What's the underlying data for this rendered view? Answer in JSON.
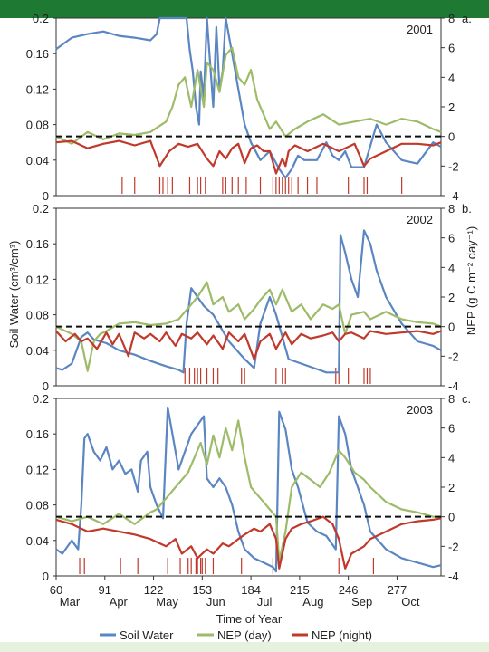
{
  "colors": {
    "soil_water": "#5b86c2",
    "nep_day": "#9dbb68",
    "nep_night": "#c0392b",
    "zero_line": "#111111",
    "header_bar": "#1e7a32",
    "footer_bar": "#e6f2de"
  },
  "chart_data": [
    {
      "type": "line",
      "panel_label": "a.",
      "year": "2001",
      "x_range": [
        60,
        305
      ],
      "ylim_left": [
        0,
        0.2
      ],
      "ylim_right": [
        -4,
        8
      ],
      "left_ticks": [
        "0",
        "0.04",
        "0.08",
        "0.12",
        "0.16",
        "0.2"
      ],
      "right_ticks": [
        "-4",
        "-2",
        "0",
        "2",
        "4",
        "6",
        "8"
      ],
      "series": [
        {
          "name": "Soil Water",
          "axis": "left",
          "x": [
            60,
            70,
            80,
            90,
            100,
            110,
            120,
            124,
            126,
            132,
            139,
            143,
            145,
            147,
            149,
            151,
            152,
            154,
            156,
            158,
            160,
            162,
            164,
            166,
            168,
            172,
            176,
            180,
            184,
            190,
            196,
            202,
            206,
            210,
            214,
            218,
            226,
            232,
            236,
            240,
            244,
            248,
            256,
            264,
            270,
            280,
            290,
            300,
            305
          ],
          "values": [
            0.165,
            0.178,
            0.182,
            0.185,
            0.18,
            0.178,
            0.175,
            0.182,
            0.2,
            0.2,
            0.2,
            0.2,
            0.165,
            0.14,
            0.1,
            0.08,
            0.14,
            0.11,
            0.2,
            0.15,
            0.1,
            0.19,
            0.12,
            0.14,
            0.2,
            0.16,
            0.12,
            0.08,
            0.06,
            0.04,
            0.05,
            0.03,
            0.02,
            0.03,
            0.045,
            0.04,
            0.04,
            0.06,
            0.045,
            0.04,
            0.05,
            0.032,
            0.032,
            0.08,
            0.06,
            0.04,
            0.036,
            0.06,
            0.055
          ]
        },
        {
          "name": "NEP (day)",
          "axis": "right",
          "x": [
            60,
            70,
            80,
            90,
            100,
            110,
            120,
            130,
            134,
            138,
            142,
            146,
            150,
            154,
            156,
            160,
            164,
            168,
            172,
            176,
            180,
            184,
            188,
            192,
            196,
            200,
            206,
            212,
            220,
            230,
            240,
            250,
            260,
            270,
            280,
            290,
            300,
            305
          ],
          "values": [
            0,
            -0.5,
            0.3,
            -0.2,
            0.2,
            0.1,
            0.3,
            1,
            2,
            3.5,
            4,
            2,
            4.5,
            2,
            5,
            4.5,
            3,
            5.5,
            6,
            4,
            3.5,
            4.5,
            2.5,
            1.5,
            0.5,
            1,
            0,
            0.5,
            1,
            1.5,
            0.8,
            1,
            1.2,
            0.8,
            1.2,
            1,
            0.5,
            0.3
          ]
        },
        {
          "name": "NEP (night)",
          "axis": "right",
          "x": [
            60,
            70,
            80,
            90,
            100,
            110,
            120,
            126,
            132,
            138,
            144,
            150,
            156,
            160,
            164,
            168,
            172,
            176,
            180,
            184,
            188,
            192,
            196,
            200,
            204,
            206,
            208,
            212,
            220,
            230,
            240,
            250,
            256,
            260,
            270,
            280,
            290,
            300,
            305
          ],
          "values": [
            -0.4,
            -0.3,
            -0.8,
            -0.5,
            -0.3,
            -0.6,
            -0.3,
            -2,
            -1,
            -0.5,
            -0.7,
            -0.5,
            -1.5,
            -2,
            -1,
            -1.5,
            -0.8,
            -0.5,
            -1.8,
            -0.8,
            -0.6,
            -1,
            -1,
            -2.5,
            -1.5,
            -2,
            -1,
            -0.6,
            -1,
            -0.5,
            -1,
            -0.5,
            -2,
            -1.5,
            -1,
            -0.5,
            -0.5,
            -0.6,
            -0.4
          ]
        }
      ],
      "precip_days": [
        102,
        110,
        126,
        128,
        131,
        134,
        145,
        150,
        152,
        155,
        166,
        168,
        172,
        176,
        181,
        190,
        198,
        200,
        202,
        204,
        206,
        208,
        210,
        214,
        220,
        226,
        246,
        256,
        258,
        280
      ]
    },
    {
      "type": "line",
      "panel_label": "b.",
      "year": "2002",
      "x_range": [
        60,
        305
      ],
      "ylim_left": [
        0,
        0.2
      ],
      "ylim_right": [
        -4,
        8
      ],
      "left_ticks": [
        "0",
        "0.04",
        "0.08",
        "0.12",
        "0.16",
        "0.2"
      ],
      "right_ticks": [
        "-4",
        "-2",
        "0",
        "2",
        "4",
        "6",
        "8"
      ],
      "series": [
        {
          "name": "Soil Water",
          "axis": "left",
          "x": [
            60,
            64,
            70,
            76,
            80,
            84,
            88,
            92,
            100,
            110,
            120,
            130,
            138,
            141,
            143,
            146,
            150,
            154,
            160,
            170,
            180,
            186,
            190,
            196,
            200,
            208,
            216,
            224,
            232,
            240,
            241,
            244,
            248,
            252,
            256,
            260,
            264,
            270,
            280,
            290,
            300,
            305
          ],
          "values": [
            0.02,
            0.018,
            0.025,
            0.055,
            0.06,
            0.052,
            0.05,
            0.048,
            0.04,
            0.035,
            0.028,
            0.022,
            0.018,
            0.015,
            0.07,
            0.11,
            0.1,
            0.09,
            0.08,
            0.05,
            0.03,
            0.02,
            0.07,
            0.1,
            0.08,
            0.03,
            0.025,
            0.02,
            0.015,
            0.015,
            0.17,
            0.15,
            0.12,
            0.1,
            0.175,
            0.16,
            0.13,
            0.1,
            0.07,
            0.05,
            0.045,
            0.04
          ]
        },
        {
          "name": "NEP (day)",
          "axis": "right",
          "x": [
            60,
            70,
            76,
            80,
            84,
            88,
            92,
            100,
            110,
            120,
            130,
            138,
            142,
            146,
            150,
            156,
            160,
            166,
            170,
            176,
            180,
            186,
            190,
            196,
            200,
            204,
            210,
            216,
            222,
            230,
            236,
            240,
            244,
            248,
            256,
            260,
            270,
            280,
            290,
            300,
            305
          ],
          "values": [
            0,
            -0.5,
            -1,
            -3,
            -1,
            -0.5,
            -0.3,
            0.2,
            0.3,
            0.1,
            0.2,
            0.5,
            1,
            1.5,
            2,
            3,
            1.5,
            2,
            1,
            1.5,
            0.5,
            1.2,
            1.8,
            2.5,
            1.5,
            2.5,
            1,
            1.5,
            0.5,
            1.5,
            1.2,
            1.5,
            -0.5,
            0.8,
            1,
            0.5,
            1,
            0.5,
            0.3,
            0.2,
            0
          ]
        },
        {
          "name": "NEP (night)",
          "axis": "right",
          "x": [
            60,
            66,
            72,
            76,
            80,
            86,
            92,
            96,
            100,
            106,
            110,
            116,
            120,
            126,
            130,
            136,
            140,
            146,
            150,
            156,
            160,
            166,
            170,
            176,
            180,
            186,
            190,
            196,
            200,
            206,
            210,
            216,
            222,
            230,
            236,
            240,
            244,
            248,
            256,
            260,
            270,
            280,
            290,
            300,
            305
          ],
          "values": [
            -0.3,
            -1,
            -0.5,
            -1,
            -0.8,
            -1.5,
            -0.4,
            -1.2,
            -0.5,
            -2,
            -0.4,
            -0.8,
            -0.5,
            -1,
            -0.4,
            -1.3,
            -0.5,
            -0.8,
            -0.4,
            -1.2,
            -0.6,
            -1.5,
            -0.4,
            -1,
            -0.5,
            -2.2,
            -1,
            -0.5,
            -1.5,
            -0.4,
            -1.2,
            -0.5,
            -0.8,
            -0.6,
            -0.4,
            -1,
            -0.5,
            -0.4,
            -0.8,
            -0.3,
            -0.5,
            -0.4,
            -0.3,
            -0.5,
            -0.3
          ]
        },
        {
          "name": "Zero",
          "axis": "right",
          "x": [],
          "values": []
        }
      ],
      "precip_days": [
        142,
        145,
        148,
        150,
        152,
        156,
        160,
        163,
        178,
        180,
        200,
        204,
        206,
        238,
        240,
        246,
        256,
        258,
        260
      ]
    },
    {
      "type": "line",
      "panel_label": "c.",
      "year": "2003",
      "x_range": [
        60,
        305
      ],
      "ylim_left": [
        0,
        0.2
      ],
      "ylim_right": [
        -4,
        8
      ],
      "left_ticks": [
        "0",
        "0.04",
        "0.08",
        "0.12",
        "0.16",
        "0.2"
      ],
      "right_ticks": [
        "-4",
        "-2",
        "0",
        "2",
        "4",
        "6",
        "8"
      ],
      "x_ticks": [
        "60",
        "91",
        "122",
        "153",
        "184",
        "215",
        "246",
        "277"
      ],
      "month_labels": [
        "Mar",
        "Apr",
        "May",
        "Jun",
        "Jul",
        "Aug",
        "Sep",
        "Oct"
      ],
      "xlabel": "Time of Year",
      "series": [
        {
          "name": "Soil Water",
          "axis": "left",
          "x": [
            60,
            64,
            70,
            74,
            76,
            78,
            80,
            84,
            88,
            92,
            96,
            100,
            104,
            108,
            112,
            114,
            118,
            120,
            124,
            128,
            131,
            134,
            138,
            142,
            146,
            150,
            154,
            156,
            160,
            164,
            168,
            172,
            176,
            180,
            186,
            192,
            198,
            200,
            202,
            206,
            210,
            214,
            220,
            226,
            232,
            238,
            240,
            244,
            248,
            252,
            256,
            260,
            270,
            280,
            290,
            300,
            305
          ],
          "values": [
            0.03,
            0.025,
            0.04,
            0.03,
            0.08,
            0.155,
            0.16,
            0.14,
            0.13,
            0.145,
            0.12,
            0.13,
            0.115,
            0.12,
            0.095,
            0.13,
            0.14,
            0.1,
            0.08,
            0.065,
            0.19,
            0.16,
            0.12,
            0.14,
            0.16,
            0.17,
            0.18,
            0.11,
            0.1,
            0.11,
            0.1,
            0.08,
            0.05,
            0.03,
            0.02,
            0.015,
            0.01,
            0.005,
            0.185,
            0.165,
            0.12,
            0.1,
            0.06,
            0.05,
            0.045,
            0.03,
            0.18,
            0.16,
            0.12,
            0.1,
            0.08,
            0.05,
            0.03,
            0.02,
            0.015,
            0.01,
            0.012
          ]
        },
        {
          "name": "NEP (day)",
          "axis": "right",
          "x": [
            60,
            70,
            80,
            90,
            100,
            110,
            120,
            124,
            128,
            132,
            136,
            140,
            144,
            148,
            152,
            156,
            160,
            164,
            168,
            172,
            176,
            180,
            184,
            188,
            192,
            196,
            200,
            202,
            206,
            210,
            216,
            222,
            228,
            234,
            240,
            244,
            250,
            256,
            260,
            270,
            280,
            290,
            300,
            305
          ],
          "values": [
            0,
            -0.3,
            0,
            -0.5,
            0.2,
            -0.5,
            0.3,
            0.5,
            1,
            1.5,
            2,
            2.5,
            3,
            4,
            5,
            3.5,
            5.5,
            4,
            6,
            4.5,
            6.5,
            4,
            2,
            1.5,
            1,
            0.5,
            0,
            -3,
            -1,
            2,
            3,
            2.5,
            2,
            3,
            4.5,
            4,
            3,
            2.5,
            2,
            1,
            0.5,
            0.3,
            0,
            0
          ]
        },
        {
          "name": "NEP (night)",
          "axis": "right",
          "x": [
            60,
            70,
            80,
            90,
            100,
            110,
            120,
            126,
            130,
            136,
            140,
            146,
            150,
            156,
            160,
            166,
            170,
            176,
            180,
            186,
            190,
            196,
            200,
            202,
            206,
            210,
            216,
            222,
            230,
            236,
            240,
            244,
            248,
            256,
            260,
            270,
            280,
            290,
            300,
            305
          ],
          "values": [
            -0.2,
            -0.5,
            -1,
            -0.8,
            -1,
            -1.2,
            -1.5,
            -1.8,
            -2,
            -1.5,
            -2.5,
            -2,
            -2.8,
            -2.2,
            -2.5,
            -1.8,
            -2,
            -1.5,
            -1.2,
            -0.8,
            -1,
            -0.5,
            -1.5,
            -3.5,
            -1.5,
            -0.8,
            -0.5,
            -0.3,
            0,
            -0.5,
            -1.5,
            -3.5,
            -2.5,
            -2,
            -1.5,
            -1,
            -0.5,
            -0.3,
            -0.2,
            -0.1
          ]
        }
      ],
      "precip_days": [
        75,
        78,
        101,
        112,
        131,
        139,
        144,
        146,
        149,
        150,
        152,
        153,
        155,
        160,
        178,
        198,
        240,
        262
      ]
    }
  ],
  "y_left_label": "Soil Water (cm³/cm³)",
  "y_right_label": "NEP (g C m⁻² day⁻¹)",
  "legend": [
    {
      "label": "Soil Water",
      "color": "#5b86c2"
    },
    {
      "label": "NEP (day)",
      "color": "#9dbb68"
    },
    {
      "label": "NEP (night)",
      "color": "#c0392b"
    }
  ]
}
